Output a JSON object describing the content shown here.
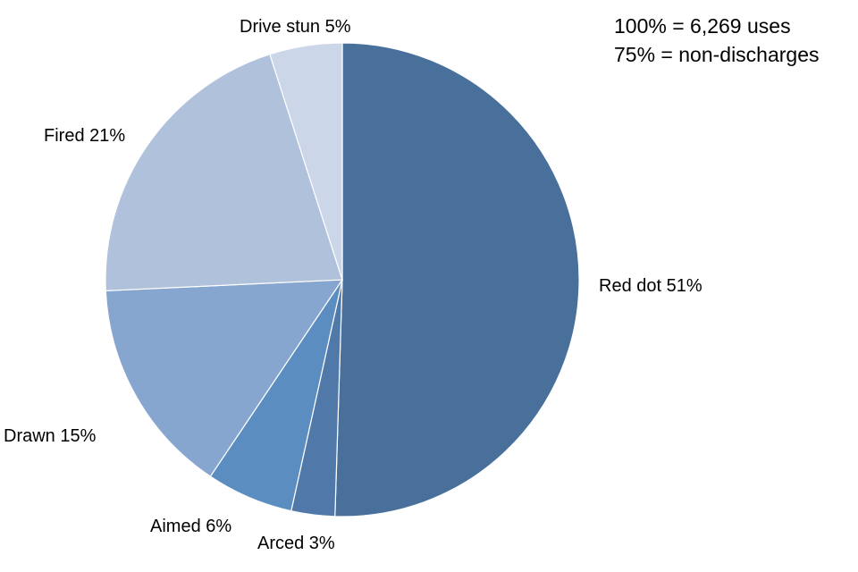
{
  "chart_data": {
    "type": "pie",
    "title": "",
    "slices": [
      {
        "label": "Red dot 51%",
        "category": "Red dot",
        "value": 51,
        "color": "#48709b"
      },
      {
        "label": "Arced 3%",
        "category": "Arced",
        "value": 3,
        "color": "#5079aa"
      },
      {
        "label": "Aimed 6%",
        "category": "Aimed",
        "value": 6,
        "color": "#5b8dc1"
      },
      {
        "label": "Drawn 15%",
        "category": "Drawn",
        "value": 15,
        "color": "#86a5cf"
      },
      {
        "label": "Fired 21%",
        "category": "Fired",
        "value": 21,
        "color": "#b0c1dc"
      },
      {
        "label": "Drive stun 5%",
        "category": "Drive stun",
        "value": 5,
        "color": "#cbd6e8"
      }
    ],
    "annotations": [
      "100% = 6,269 uses",
      "75% = non-discharges"
    ]
  }
}
